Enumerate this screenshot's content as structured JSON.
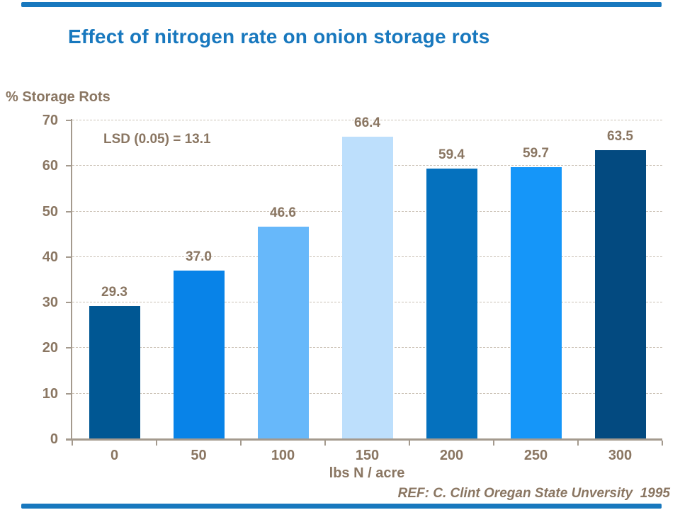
{
  "slide": {
    "title": "Effect of nitrogen rate on onion storage rots",
    "y_axis_header": "% Storage Rots",
    "annotation": "LSD (0.05) = 13.1",
    "reference": "REF: C. Clint Oregan State Unversity  1995"
  },
  "colors": {
    "title_blue": "#1878BE",
    "accent_band_blue": "#1878BE",
    "text_brown": "#8A7662",
    "axis_line": "#A49A8E",
    "gridline": "#CBC2B6",
    "background": "#FFFFFF"
  },
  "chart_data": {
    "type": "bar",
    "title": "Effect of nitrogen rate on onion storage rots",
    "xlabel": "lbs N / acre",
    "ylabel": "% Storage Rots",
    "categories": [
      "0",
      "50",
      "100",
      "150",
      "200",
      "250",
      "300"
    ],
    "values": [
      29.3,
      37.0,
      46.6,
      66.4,
      59.4,
      59.7,
      63.5
    ],
    "value_labels": [
      "29.3",
      "37.0",
      "46.6",
      "66.4",
      "59.4",
      "59.7",
      "63.5"
    ],
    "bar_colors": [
      "#005793",
      "#0883E8",
      "#67B8FA",
      "#BDDFFC",
      "#0571BE",
      "#1596F9",
      "#034A80"
    ],
    "ylim": [
      0,
      70
    ],
    "ytick_step": 10,
    "yticks": [
      "0",
      "10",
      "20",
      "30",
      "40",
      "50",
      "60",
      "70"
    ],
    "grid": "horizontal-dashed",
    "legend": "none",
    "annotation": "LSD (0.05) = 13.1"
  }
}
